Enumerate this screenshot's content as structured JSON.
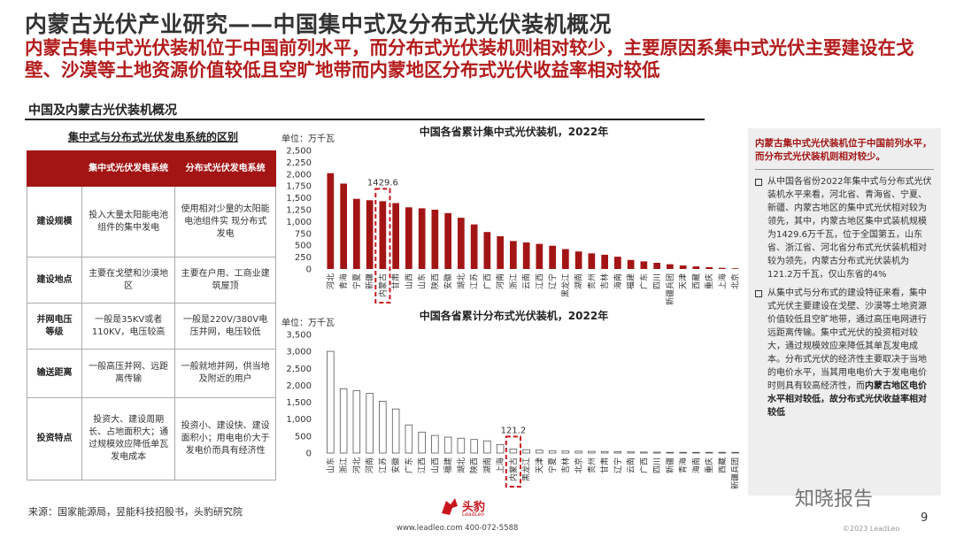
{
  "header": {
    "title": "内蒙古光伏产业研究——中国集中式及分布式光伏装机概况",
    "subtitle": "内蒙古集中式光伏装机位于中国前列水平，而分布式光伏装机则相对较少，主要原因系集中式光伏主要建设在戈壁、沙漠等土地资源价值较低且空旷地带而内蒙地区分布式光伏收益率相对较低"
  },
  "section": {
    "title": "中国及内蒙古光伏装机概况"
  },
  "table": {
    "title": "集中式与分布式光伏发电系统的区别",
    "headers": [
      "",
      "集中式光伏发电系统",
      "分布式光伏发电系统"
    ],
    "rows": [
      {
        "label": "建设规模",
        "central": "投入大量太阳能电池组件的集中发电",
        "distributed": "使用相对少量的太阳能电池组件实 现分布式发电"
      },
      {
        "label": "建设地点",
        "central": "主要在戈壁和沙漠地区",
        "distributed": "主要在户用、工商业建筑屋顶"
      },
      {
        "label": "并网电压等级",
        "central": "一般是35KV或者110KV，电压较高",
        "distributed": "一般是220V/380V电压并网，电压较低"
      },
      {
        "label": "输送距离",
        "central": "一般高压并网、远距离传输",
        "distributed": "一般就地并网，供当地及附近的用户"
      },
      {
        "label": "投资特点",
        "central": "投资大、建设周期长、占地面积大；通过规模效应降低单瓦发电成本",
        "distributed": "投资小、建设快、建设面积小；用电电价大于发电价而具有经济性"
      }
    ]
  },
  "chart_data": [
    {
      "type": "bar",
      "title": "中国各省累计集中式光伏装机，2022年",
      "unit": "单位：万千瓦",
      "ylim": [
        0,
        2500
      ],
      "yticks": [
        "0",
        "250",
        "500",
        "750",
        "1,000",
        "1,250",
        "1,500",
        "1,750",
        "2,000",
        "2,250",
        "2,500"
      ],
      "categories": [
        "河北",
        "青海",
        "宁夏",
        "新疆",
        "内蒙古",
        "甘肃",
        "山西",
        "山东",
        "陕西",
        "安徽",
        "湖北",
        "江苏",
        "广西",
        "河南",
        "浙江",
        "云南",
        "江西",
        "辽宁",
        "黑龙江",
        "湖南",
        "贵州",
        "吉林",
        "海南",
        "福建",
        "广东",
        "四川",
        "新疆兵团",
        "天津",
        "西藏",
        "重庆",
        "上海",
        "北京"
      ],
      "values": [
        2020,
        1800,
        1480,
        1450,
        1429.6,
        1390,
        1300,
        1280,
        1250,
        1180,
        1080,
        940,
        780,
        690,
        590,
        560,
        530,
        490,
        420,
        370,
        330,
        300,
        260,
        190,
        160,
        130,
        100,
        75,
        55,
        40,
        25,
        15
      ],
      "highlight_index": 4,
      "highlight_label": "1429.6",
      "bar_color": "#a31515"
    },
    {
      "type": "bar",
      "title": "中国各省累计分布式光伏装机，2022年",
      "unit": "单位：万千瓦",
      "ylim": [
        0,
        3500
      ],
      "yticks": [
        "0",
        "500",
        "1,000",
        "1,500",
        "2,000",
        "2,500",
        "3,000",
        "3,500"
      ],
      "categories": [
        "山东",
        "浙江",
        "河北",
        "河南",
        "江苏",
        "安徽",
        "广东",
        "江西",
        "山西",
        "福建",
        "湖北",
        "陕西",
        "湖南",
        "上海",
        "内蒙古",
        "黑龙江",
        "天津",
        "宁夏",
        "吉林",
        "北京",
        "贵州",
        "甘肃",
        "辽宁",
        "云南",
        "广西",
        "四川",
        "新疆",
        "青海",
        "海南",
        "重庆",
        "西藏",
        "新疆兵团"
      ],
      "values": [
        3000,
        1900,
        1840,
        1760,
        1530,
        1300,
        830,
        620,
        520,
        470,
        440,
        400,
        360,
        250,
        121.2,
        100,
        85,
        70,
        60,
        55,
        50,
        45,
        40,
        35,
        30,
        25,
        20,
        15,
        12,
        10,
        5,
        3
      ],
      "highlight_index": 14,
      "highlight_label": "121.2",
      "bar_color": "#ffffff"
    }
  ],
  "sidebar": {
    "headline": "内蒙古集中式光伏装机位于中国前列水平，而分布式光伏装机则相对较少。",
    "bullet1": "从中国各省份2022年集中式与分布式光伏装机水平来看，河北省、青海省、宁夏、新疆、内蒙古地区的集中式光伏相对较为领先，其中，内蒙古地区集中式装机规模为1429.6万千瓦，位于全国第五，山东省、浙江省、河北省分布式光伏装机相对较为领先，内蒙古分布式光伏装机为121.2万千瓦，仅山东省的4%",
    "bullet2_a": "从集中式与分布式的建设特征来看，集中式光伏主要建设在戈壁、沙漠等土地资源价值较低且空旷地带，通过高压电网进行远距离传输。集中式光伏的投资相对较大，通过规模效应来降低其单瓦发电成本。分布式光伏的经济性主要取决于当地的电价水平，当其用电电价大于发电电价时则具有较高经济性，而",
    "bullet2_b": "内蒙古地区电价水平相对较低，故分布式光伏收益率相对较低"
  },
  "footer": {
    "source": "来源：国家能源局，昱能科技招股书，头豹研究院",
    "logo_text": "头豹",
    "logo_sub": "LeadLeo",
    "contact": "www.leadleo.com   400-072-5588",
    "copyright": "©2023 LeadLeo",
    "page": "9",
    "watermark": "知晓报告"
  },
  "colors": {
    "accent": "#a31515",
    "sidebar_bg": "#eeeeee"
  }
}
